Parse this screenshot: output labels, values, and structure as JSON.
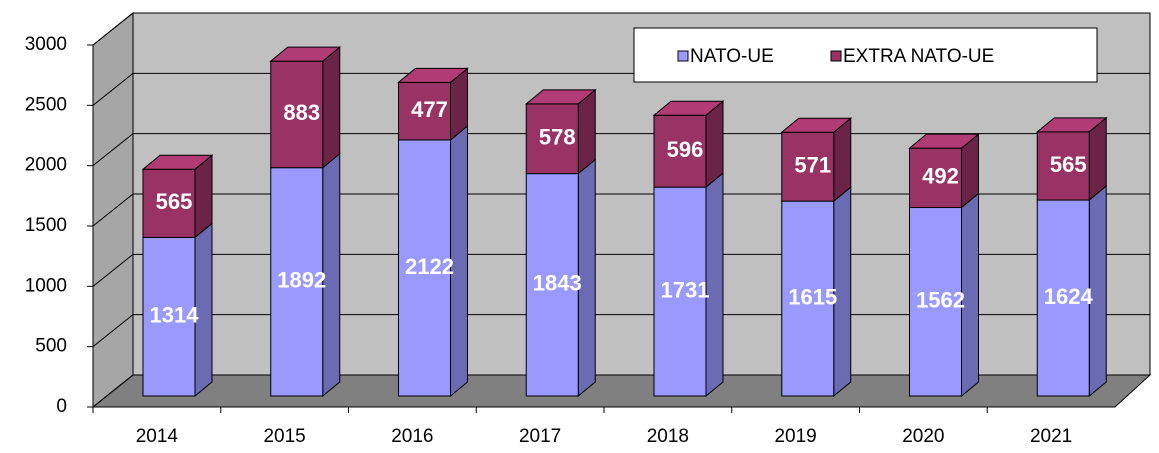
{
  "chart_data": {
    "type": "bar3d_stacked",
    "categories": [
      "2014",
      "2015",
      "2016",
      "2017",
      "2018",
      "2019",
      "2020",
      "2021"
    ],
    "series": [
      {
        "name": "NATO-UE",
        "color": "#9999ff",
        "values": [
          1314,
          1892,
          2122,
          1843,
          1731,
          1615,
          1562,
          1624
        ]
      },
      {
        "name": "EXTRA NATO-UE",
        "color": "#993366",
        "values": [
          565,
          883,
          477,
          578,
          596,
          571,
          492,
          565
        ]
      }
    ],
    "ylim": [
      0,
      3000
    ],
    "yticks": [
      0,
      500,
      1000,
      1500,
      2000,
      2500,
      3000
    ],
    "grid": true,
    "legend": "top-right"
  }
}
